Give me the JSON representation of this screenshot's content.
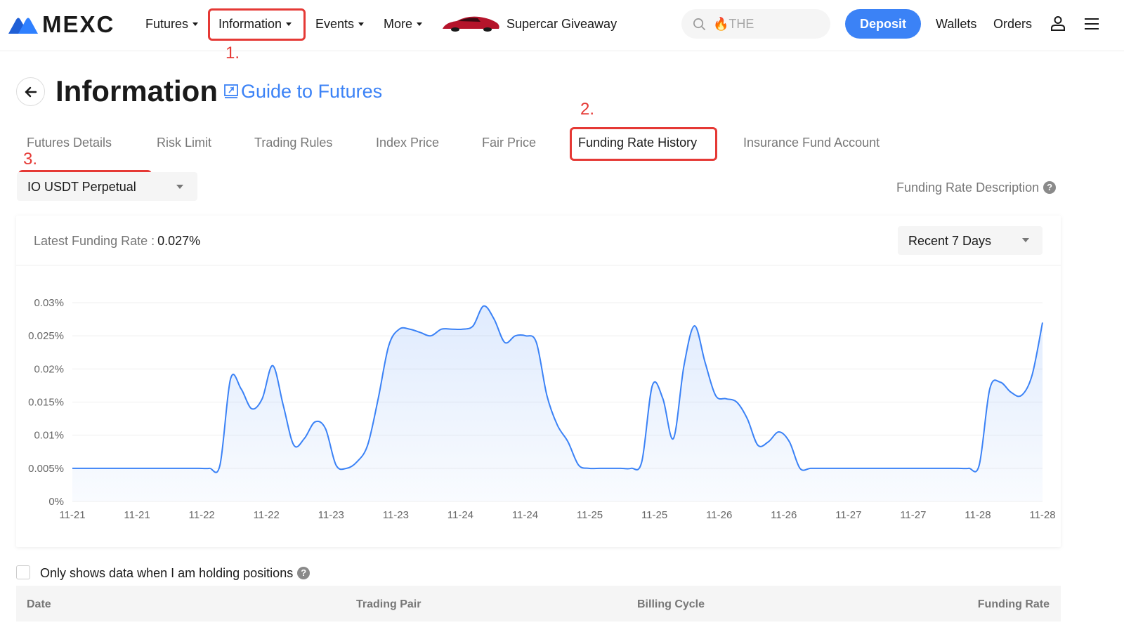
{
  "brand": {
    "name": "MEXC",
    "accent": "#3b82f6"
  },
  "nav": {
    "futures": "Futures",
    "information": "Information",
    "events": "Events",
    "more": "More",
    "giveaway": "Supercar Giveaway",
    "search_placeholder": "🔥THE",
    "deposit": "Deposit",
    "wallets": "Wallets",
    "orders": "Orders"
  },
  "annotations": {
    "step1": "1.",
    "step2": "2.",
    "step3": "3.",
    "color": "#e53935"
  },
  "header": {
    "title": "Information",
    "guide": "Guide to Futures"
  },
  "tabs": [
    {
      "label": "Futures Details"
    },
    {
      "label": "Risk Limit"
    },
    {
      "label": "Trading Rules"
    },
    {
      "label": "Index Price"
    },
    {
      "label": "Fair Price"
    },
    {
      "label": "Funding Rate History",
      "active": true
    },
    {
      "label": "Insurance Fund Account"
    }
  ],
  "contract": {
    "selected": "IO USDT Perpetual"
  },
  "funding_description": "Funding Rate Description",
  "panel": {
    "latest_label": "Latest Funding Rate :",
    "latest_value": "0.027%",
    "range": "Recent 7 Days"
  },
  "chart_data": {
    "type": "area",
    "title": "",
    "xlabel": "",
    "ylabel": "",
    "ylim": [
      0,
      0.03
    ],
    "y_ticks": [
      "0%",
      "0.005%",
      "0.01%",
      "0.015%",
      "0.02%",
      "0.025%",
      "0.03%"
    ],
    "x_tick_labels": [
      "11-21",
      "11-21",
      "11-22",
      "11-22",
      "11-23",
      "11-23",
      "11-24",
      "11-24",
      "11-25",
      "11-25",
      "11-26",
      "11-26",
      "11-27",
      "11-27",
      "11-28",
      "11-28"
    ],
    "grid": true,
    "color": "#3b82f6",
    "series": [
      {
        "values": [
          0.005,
          0.005,
          0.005,
          0.005,
          0.005,
          0.005,
          0.005,
          0.005,
          0.005,
          0.005,
          0.005,
          0.005,
          0.005,
          0.005,
          0.0055,
          0.0185,
          0.017,
          0.014,
          0.0155,
          0.0205,
          0.0145,
          0.0085,
          0.0095,
          0.012,
          0.011,
          0.0055,
          0.005,
          0.006,
          0.0085,
          0.0155,
          0.0235,
          0.026,
          0.026,
          0.0255,
          0.025,
          0.026,
          0.026,
          0.026,
          0.0265,
          0.0295,
          0.0275,
          0.024,
          0.025,
          0.025,
          0.024,
          0.016,
          0.0115,
          0.009,
          0.0055,
          0.005,
          0.005,
          0.005,
          0.005,
          0.005,
          0.006,
          0.0175,
          0.0155,
          0.0095,
          0.0205,
          0.0265,
          0.021,
          0.016,
          0.0155,
          0.015,
          0.0125,
          0.0085,
          0.009,
          0.0105,
          0.009,
          0.005,
          0.005,
          0.005,
          0.005,
          0.005,
          0.005,
          0.005,
          0.005,
          0.005,
          0.005,
          0.005,
          0.005,
          0.005,
          0.005,
          0.005,
          0.005,
          0.005,
          0.0055,
          0.017,
          0.018,
          0.0165,
          0.016,
          0.019,
          0.027
        ]
      }
    ]
  },
  "filter": {
    "holding_only": "Only shows data when I am holding positions"
  },
  "table": {
    "columns": [
      "Date",
      "Trading Pair",
      "Billing Cycle",
      "Funding Rate"
    ]
  }
}
